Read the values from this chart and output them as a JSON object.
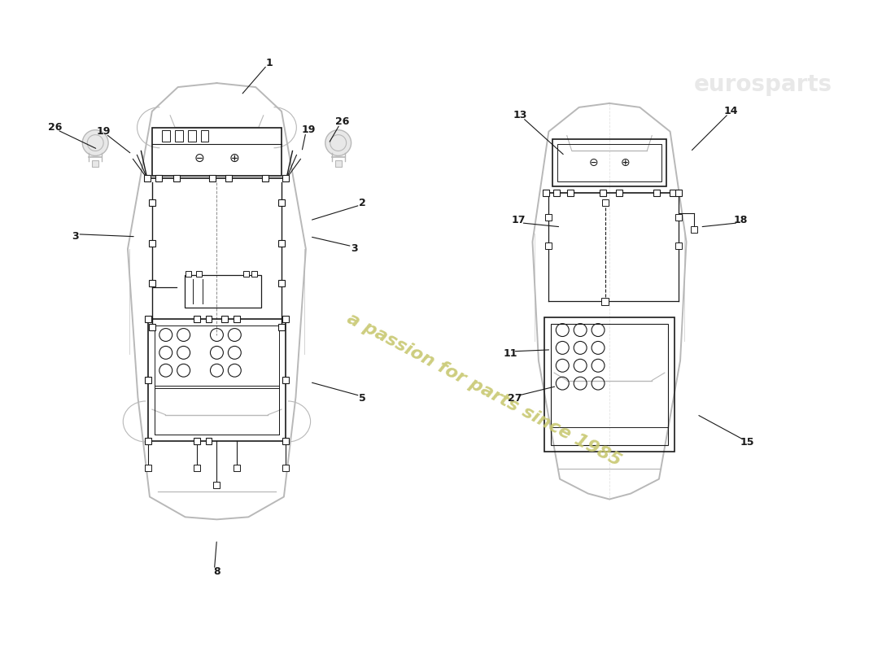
{
  "bg_color": "#ffffff",
  "car_color": "#b8b8b8",
  "wiring_color": "#1a1a1a",
  "label_color": "#1a1a1a",
  "watermark_color": "#c8c870",
  "watermark_text": "a passion for parts since 1985",
  "figsize": [
    11.0,
    8.0
  ],
  "dpi": 100
}
